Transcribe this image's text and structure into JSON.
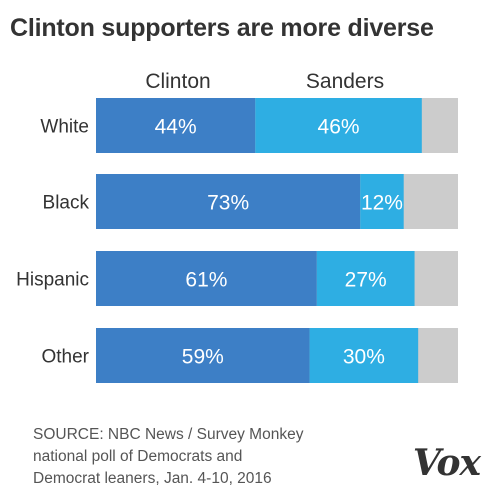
{
  "chart_data": {
    "type": "bar",
    "stacked": true,
    "orientation": "horizontal",
    "title": "Clinton supporters are more diverse",
    "categories": [
      "White",
      "Black",
      "Hispanic",
      "Other"
    ],
    "series": [
      {
        "name": "Clinton",
        "values": [
          44,
          73,
          61,
          59
        ],
        "labels": [
          "44%",
          "73%",
          "61%",
          "59%"
        ],
        "color": "#3d7fc6"
      },
      {
        "name": "Sanders",
        "values": [
          46,
          12,
          27,
          30
        ],
        "labels": [
          "46%",
          "12%",
          "27%",
          "30%"
        ],
        "color": "#2eaee3"
      }
    ],
    "remainder_color": "#cccccc",
    "xlim": [
      0,
      100
    ],
    "grid": false,
    "legend": "top"
  },
  "source": {
    "lines": [
      "SOURCE: NBC News / Survey Monkey",
      "national poll of Democrats and",
      "Democrat leaners, Jan. 4-10, 2016"
    ]
  },
  "logo": "Vox"
}
